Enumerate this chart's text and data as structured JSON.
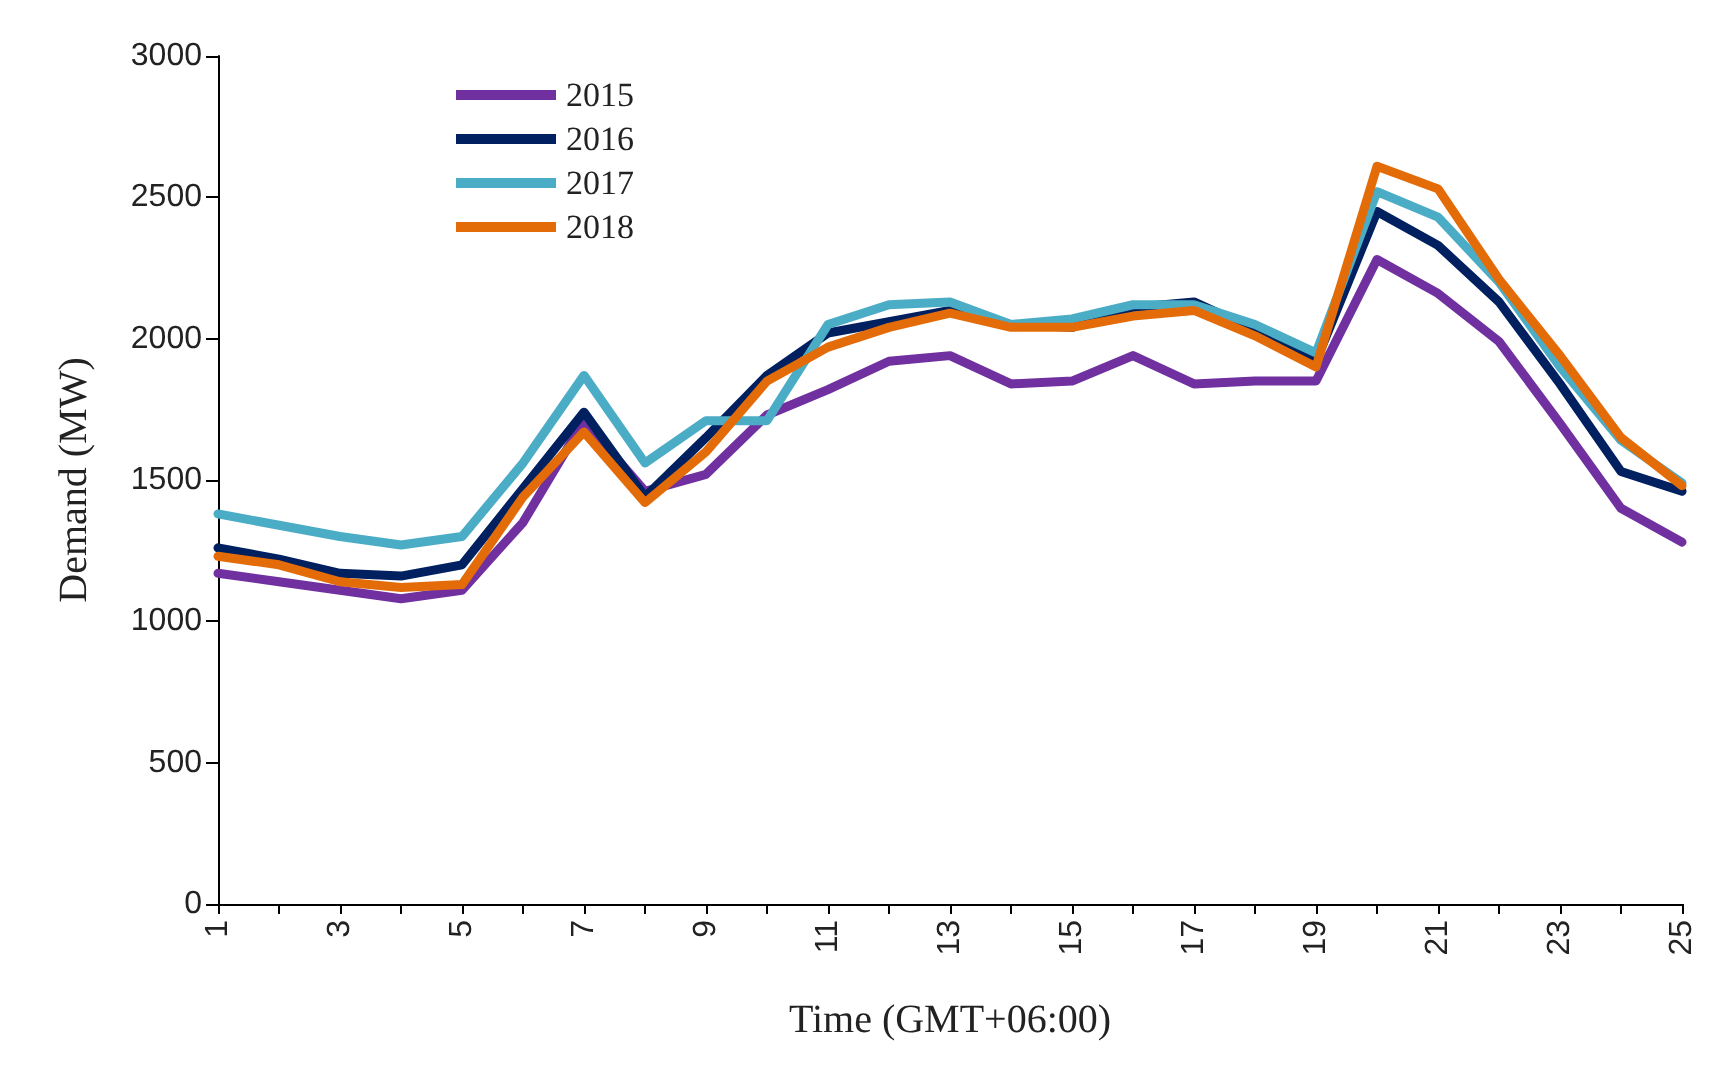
{
  "chart_data": {
    "type": "line",
    "xlabel": "Time (GMT+06:00)",
    "ylabel": "Demand (MW)",
    "x": [
      1,
      2,
      3,
      4,
      5,
      6,
      7,
      8,
      9,
      10,
      11,
      12,
      13,
      14,
      15,
      16,
      17,
      18,
      19,
      20,
      21,
      22,
      23,
      24,
      25
    ],
    "series": [
      {
        "name": "2015",
        "color": "#7030a0",
        "values": [
          1170,
          1140,
          1110,
          1080,
          1110,
          1350,
          1710,
          1460,
          1520,
          1730,
          1820,
          1920,
          1940,
          1840,
          1850,
          1940,
          1840,
          1850,
          1850,
          2280,
          2160,
          1990,
          1700,
          1400,
          1280
        ]
      },
      {
        "name": "2016",
        "color": "#002060",
        "values": [
          1260,
          1220,
          1170,
          1160,
          1200,
          1470,
          1740,
          1440,
          1650,
          1870,
          2020,
          2060,
          2100,
          2050,
          2040,
          2110,
          2130,
          2030,
          1920,
          2450,
          2330,
          2130,
          1840,
          1530,
          1460
        ]
      },
      {
        "name": "2017",
        "color": "#4bacc6",
        "values": [
          1380,
          1340,
          1300,
          1270,
          1300,
          1560,
          1870,
          1560,
          1710,
          1710,
          2050,
          2120,
          2130,
          2050,
          2070,
          2120,
          2120,
          2050,
          1950,
          2520,
          2430,
          2200,
          1900,
          1640,
          1490
        ]
      },
      {
        "name": "2018",
        "color": "#e36c09",
        "values": [
          1230,
          1200,
          1140,
          1120,
          1130,
          1440,
          1670,
          1420,
          1600,
          1850,
          1970,
          2040,
          2090,
          2040,
          2040,
          2080,
          2100,
          2010,
          1900,
          2610,
          2530,
          2210,
          1940,
          1650,
          1480
        ]
      }
    ],
    "xlim": [
      1,
      25
    ],
    "xticks": [
      1,
      {
        "value": 2,
        "label": null
      },
      3,
      {
        "value": 4,
        "label": null
      },
      5,
      {
        "value": 6,
        "label": null
      },
      7,
      {
        "value": 8,
        "label": null
      },
      9,
      {
        "value": 10,
        "label": null
      },
      11,
      {
        "value": 12,
        "label": null
      },
      13,
      {
        "value": 14,
        "label": null
      },
      15,
      {
        "value": 16,
        "label": null
      },
      17,
      {
        "value": 18,
        "label": null
      },
      19,
      {
        "value": 20,
        "label": null
      },
      21,
      {
        "value": 22,
        "label": null
      },
      23,
      {
        "value": 24,
        "label": null
      },
      25
    ],
    "ylim": [
      0,
      3000
    ],
    "yticks": [
      0,
      500,
      1000,
      1500,
      2000,
      2500,
      3000
    ],
    "grid": false,
    "legend": "top left",
    "marker": "none",
    "line_style": "solid"
  }
}
